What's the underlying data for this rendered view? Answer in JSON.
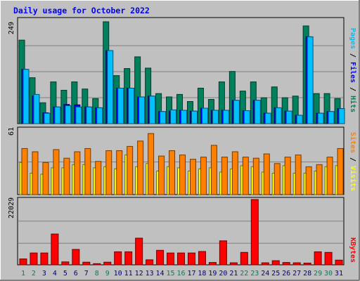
{
  "title": "Daily usage for October 2022",
  "colors": {
    "hits": "#00805c",
    "files": "#0000ff",
    "pages": "#00c0ff",
    "visits": "#ffff00",
    "sites": "#ff8000",
    "kbytes": "#ff0000",
    "title": "#0000ff",
    "weekday_label": "#000080",
    "weekend_label": "#00805c"
  },
  "right_labels": {
    "top": [
      {
        "text": "Pages",
        "color": "#00c0ff"
      },
      {
        "text": " / ",
        "color": "#000000"
      },
      {
        "text": "Files",
        "color": "#0000ff"
      },
      {
        "text": " / ",
        "color": "#000000"
      },
      {
        "text": "Hits",
        "color": "#00805c"
      }
    ],
    "middle": [
      {
        "text": "Sites",
        "color": "#ff8000"
      },
      {
        "text": " / ",
        "color": "#000000"
      },
      {
        "text": "Visits",
        "color": "#ffff00"
      }
    ],
    "bottom": [
      {
        "text": "KBytes",
        "color": "#ff0000"
      }
    ]
  },
  "chart_data": [
    {
      "type": "bar",
      "title": "Daily usage for October 2022",
      "ylabel": "Pages / Files / Hits",
      "ymax_label": "249",
      "ylim": [
        0,
        249
      ],
      "categories": [
        "1",
        "2",
        "3",
        "4",
        "5",
        "6",
        "7",
        "8",
        "9",
        "10",
        "11",
        "12",
        "13",
        "14",
        "15",
        "16",
        "17",
        "18",
        "19",
        "20",
        "21",
        "22",
        "23",
        "24",
        "25",
        "26",
        "27",
        "28",
        "29",
        "30",
        "31"
      ],
      "weekend_days": [
        "1",
        "2",
        "8",
        "9",
        "15",
        "16",
        "22",
        "23",
        "29",
        "30"
      ],
      "series": [
        {
          "name": "Hits",
          "values": [
            200,
            110,
            50,
            100,
            80,
            100,
            83,
            60,
            244,
            115,
            132,
            160,
            133,
            72,
            64,
            70,
            53,
            85,
            58,
            100,
            125,
            78,
            100,
            62,
            88,
            62,
            66,
            234,
            72,
            72,
            60
          ]
        },
        {
          "name": "Files",
          "values": [
            130,
            66,
            26,
            40,
            46,
            45,
            40,
            38,
            175,
            85,
            85,
            64,
            66,
            29,
            30,
            32,
            30,
            37,
            32,
            32,
            56,
            31,
            56,
            25,
            38,
            30,
            20,
            208,
            25,
            29,
            36
          ]
        },
        {
          "name": "Pages",
          "values": [
            130,
            70,
            25,
            40,
            43,
            40,
            40,
            38,
            175,
            85,
            85,
            64,
            66,
            29,
            33,
            32,
            30,
            37,
            32,
            32,
            56,
            31,
            56,
            25,
            38,
            30,
            20,
            208,
            25,
            29,
            36
          ]
        }
      ]
    },
    {
      "type": "bar",
      "ylabel": "Sites / Visits",
      "ymax_label": "61",
      "ylim": [
        0,
        61
      ],
      "categories": [
        "1",
        "2",
        "3",
        "4",
        "5",
        "6",
        "7",
        "8",
        "9",
        "10",
        "11",
        "12",
        "13",
        "14",
        "15",
        "16",
        "17",
        "18",
        "19",
        "20",
        "21",
        "22",
        "23",
        "24",
        "25",
        "26",
        "27",
        "28",
        "29",
        "30",
        "31"
      ],
      "series": [
        {
          "name": "Visits",
          "values": [
            30,
            20,
            19,
            25,
            25,
            28,
            28,
            25,
            26,
            24,
            37,
            26,
            29,
            22,
            26,
            25,
            22,
            24,
            25,
            21,
            24,
            27,
            26,
            21,
            20,
            27,
            20,
            20,
            22,
            26,
            27
          ]
        },
        {
          "name": "Sites",
          "values": [
            43,
            40,
            30,
            42,
            34,
            40,
            43,
            31,
            41,
            41,
            45,
            50,
            57,
            36,
            41,
            37,
            33,
            35,
            46,
            35,
            40,
            35,
            34,
            38,
            29,
            35,
            37,
            26,
            28,
            35,
            43
          ]
        }
      ]
    },
    {
      "type": "bar",
      "ylabel": "KBytes",
      "ymax_label": "22029",
      "ylim": [
        0,
        22029
      ],
      "categories": [
        "1",
        "2",
        "3",
        "4",
        "5",
        "6",
        "7",
        "8",
        "9",
        "10",
        "11",
        "12",
        "13",
        "14",
        "15",
        "16",
        "17",
        "18",
        "19",
        "20",
        "21",
        "22",
        "23",
        "24",
        "25",
        "26",
        "27",
        "28",
        "29",
        "30",
        "31"
      ],
      "series": [
        {
          "name": "KBytes",
          "values": [
            2000,
            4000,
            4000,
            10400,
            1000,
            5200,
            900,
            400,
            900,
            4400,
            4400,
            9000,
            1700,
            4900,
            4000,
            4000,
            4000,
            4500,
            800,
            8100,
            700,
            4200,
            22029,
            700,
            1400,
            800,
            700,
            600,
            4400,
            4200,
            1600
          ]
        }
      ]
    }
  ]
}
